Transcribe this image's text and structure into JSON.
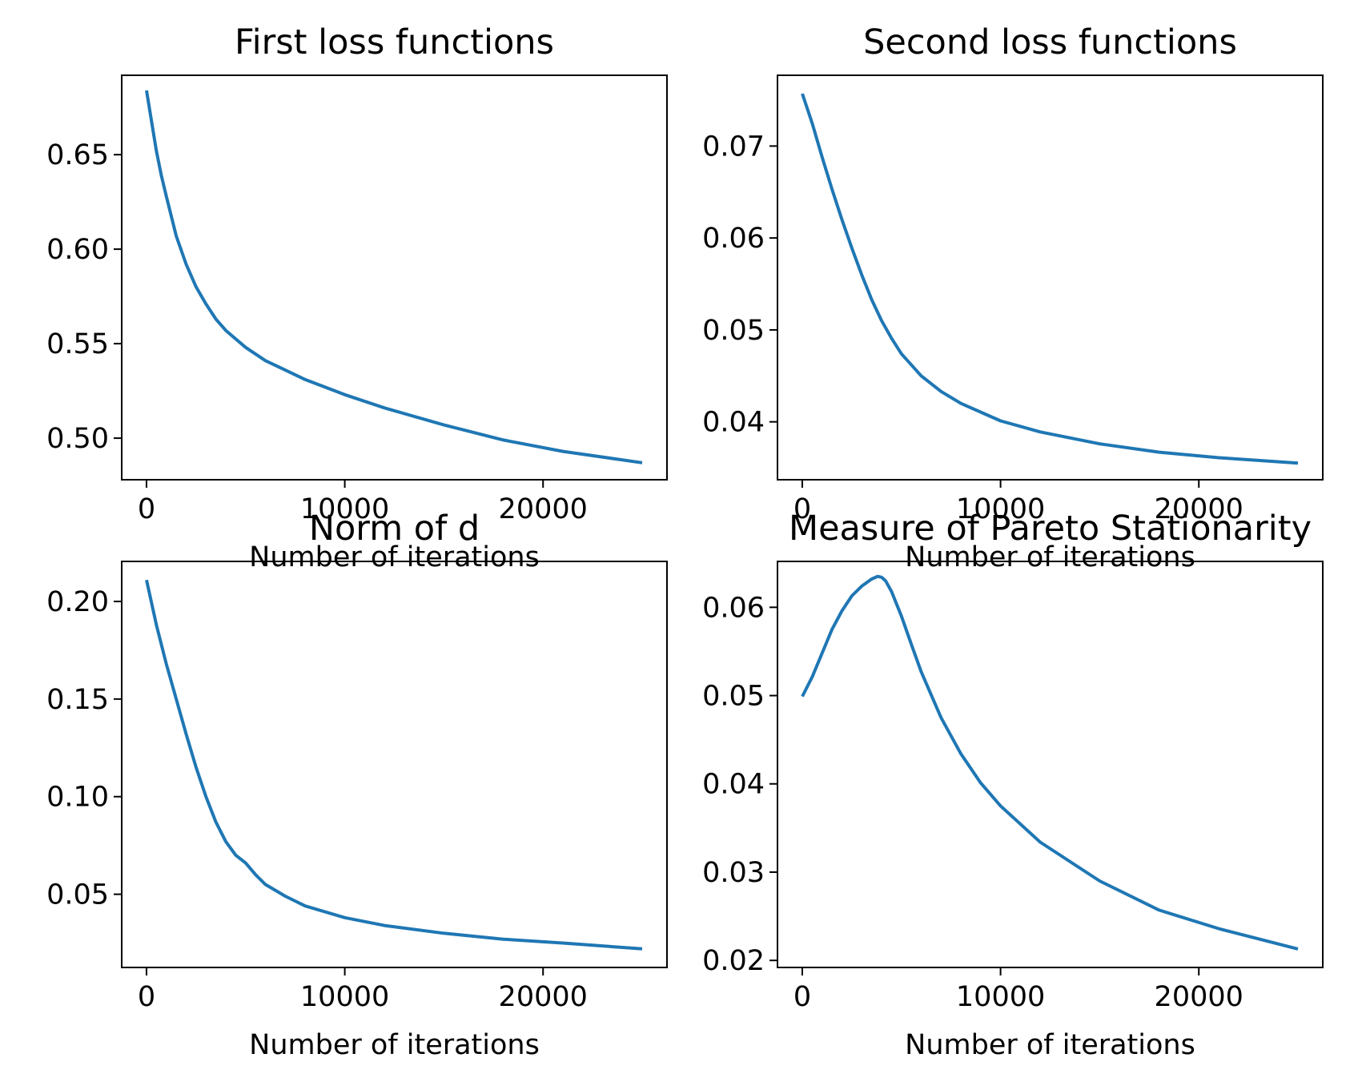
{
  "chart_data": [
    {
      "type": "line",
      "title": "First loss functions",
      "xlabel": "Number of iterations",
      "ylabel": "",
      "xlim": [
        -1250,
        26250
      ],
      "ylim": [
        0.478,
        0.692
      ],
      "xticks": [
        0,
        10000,
        20000
      ],
      "xtick_labels": [
        "0",
        "10000",
        "20000"
      ],
      "yticks": [
        0.5,
        0.55,
        0.6,
        0.65
      ],
      "ytick_labels": [
        "0.50",
        "0.55",
        "0.60",
        "0.65"
      ],
      "grid": false,
      "series": [
        {
          "color": "#1f77b4",
          "x": [
            0,
            250,
            500,
            750,
            1000,
            1500,
            2000,
            2500,
            3000,
            3500,
            4000,
            5000,
            6000,
            7000,
            8000,
            10000,
            12000,
            15000,
            18000,
            21000,
            25000
          ],
          "y": [
            0.684,
            0.668,
            0.652,
            0.639,
            0.628,
            0.607,
            0.592,
            0.58,
            0.571,
            0.563,
            0.557,
            0.548,
            0.541,
            0.536,
            0.531,
            0.523,
            0.516,
            0.507,
            0.499,
            0.493,
            0.487
          ]
        }
      ]
    },
    {
      "type": "line",
      "title": "Second loss functions",
      "xlabel": "Number of iterations",
      "ylabel": "",
      "xlim": [
        -1250,
        26250
      ],
      "ylim": [
        0.0337,
        0.0777
      ],
      "xticks": [
        0,
        10000,
        20000
      ],
      "xtick_labels": [
        "0",
        "10000",
        "20000"
      ],
      "yticks": [
        0.04,
        0.05,
        0.06,
        0.07
      ],
      "ytick_labels": [
        "0.04",
        "0.05",
        "0.06",
        "0.07"
      ],
      "grid": false,
      "series": [
        {
          "color": "#1f77b4",
          "x": [
            0,
            500,
            1000,
            1500,
            2000,
            2500,
            3000,
            3500,
            4000,
            4500,
            5000,
            6000,
            7000,
            8000,
            10000,
            12000,
            15000,
            18000,
            21000,
            25000
          ],
          "y": [
            0.0757,
            0.0725,
            0.0688,
            0.0653,
            0.062,
            0.0589,
            0.056,
            0.0533,
            0.051,
            0.0491,
            0.0474,
            0.045,
            0.0433,
            0.042,
            0.0401,
            0.0389,
            0.0376,
            0.0367,
            0.0361,
            0.0355
          ]
        }
      ]
    },
    {
      "type": "line",
      "title": "Norm of d",
      "xlabel": "Number of iterations",
      "ylabel": "",
      "xlim": [
        -1250,
        26250
      ],
      "ylim": [
        0.0125,
        0.2205
      ],
      "xticks": [
        0,
        10000,
        20000
      ],
      "xtick_labels": [
        "0",
        "10000",
        "20000"
      ],
      "yticks": [
        0.05,
        0.1,
        0.15,
        0.2
      ],
      "ytick_labels": [
        "0.05",
        "0.10",
        "0.15",
        "0.20"
      ],
      "grid": false,
      "series": [
        {
          "color": "#1f77b4",
          "x": [
            0,
            500,
            1000,
            1500,
            2000,
            2500,
            3000,
            3500,
            4000,
            4500,
            5000,
            5500,
            6000,
            7000,
            8000,
            10000,
            12000,
            15000,
            18000,
            21000,
            25000
          ],
          "y": [
            0.211,
            0.188,
            0.168,
            0.15,
            0.132,
            0.115,
            0.1,
            0.087,
            0.077,
            0.07,
            0.066,
            0.06,
            0.055,
            0.049,
            0.044,
            0.038,
            0.034,
            0.03,
            0.027,
            0.025,
            0.022
          ]
        }
      ]
    },
    {
      "type": "line",
      "title": "Measure of Pareto Stationarity",
      "xlabel": "Number of iterations",
      "ylabel": "",
      "xlim": [
        -1250,
        26250
      ],
      "ylim": [
        0.0192,
        0.0652
      ],
      "xticks": [
        0,
        10000,
        20000
      ],
      "xtick_labels": [
        "0",
        "10000",
        "20000"
      ],
      "yticks": [
        0.02,
        0.03,
        0.04,
        0.05,
        0.06
      ],
      "ytick_labels": [
        "0.02",
        "0.03",
        "0.04",
        "0.05",
        "0.06"
      ],
      "grid": false,
      "series": [
        {
          "color": "#1f77b4",
          "x": [
            0,
            500,
            1000,
            1500,
            2000,
            2500,
            3000,
            3500,
            3800,
            4000,
            4200,
            4500,
            5000,
            5500,
            6000,
            7000,
            8000,
            9000,
            10000,
            12000,
            15000,
            18000,
            21000,
            25000
          ],
          "y": [
            0.0499,
            0.0521,
            0.0548,
            0.0575,
            0.0596,
            0.0613,
            0.0624,
            0.0632,
            0.0635,
            0.0634,
            0.063,
            0.0618,
            0.059,
            0.0558,
            0.0527,
            0.0475,
            0.0434,
            0.0401,
            0.0375,
            0.0334,
            0.029,
            0.0257,
            0.0236,
            0.0213
          ]
        }
      ]
    }
  ]
}
